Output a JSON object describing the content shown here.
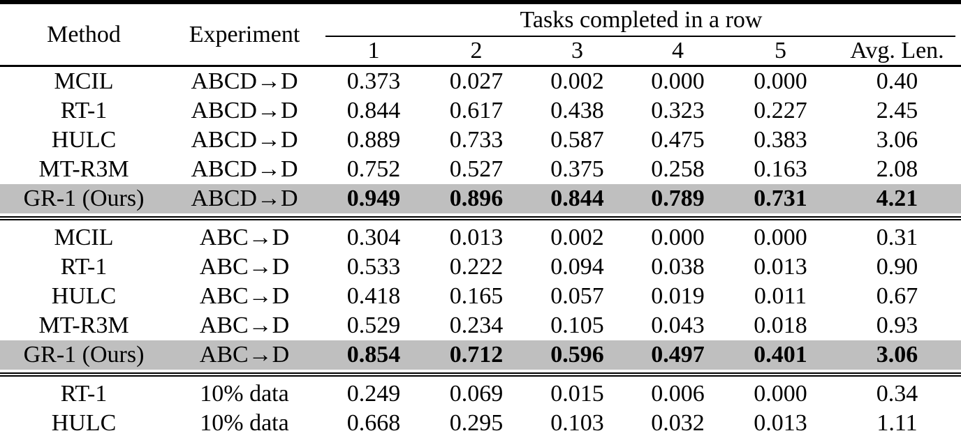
{
  "table": {
    "header": {
      "method_label": "Method",
      "experiment_label": "Experiment",
      "span_label": "Tasks completed in a row",
      "task_columns": [
        "1",
        "2",
        "3",
        "4",
        "5"
      ],
      "avg_label": "Avg. Len."
    },
    "colors": {
      "highlight_row": "#bfbfbf",
      "rule": "#000000",
      "text": "#000000",
      "background": "#ffffff"
    },
    "groups": [
      {
        "rows": [
          {
            "method": "MCIL",
            "experiment": "ABCD→D",
            "values": [
              "0.373",
              "0.027",
              "0.002",
              "0.000",
              "0.000"
            ],
            "avg": "0.40",
            "highlight": false
          },
          {
            "method": "RT-1",
            "experiment": "ABCD→D",
            "values": [
              "0.844",
              "0.617",
              "0.438",
              "0.323",
              "0.227"
            ],
            "avg": "2.45",
            "highlight": false
          },
          {
            "method": "HULC",
            "experiment": "ABCD→D",
            "values": [
              "0.889",
              "0.733",
              "0.587",
              "0.475",
              "0.383"
            ],
            "avg": "3.06",
            "highlight": false
          },
          {
            "method": "MT-R3M",
            "experiment": "ABCD→D",
            "values": [
              "0.752",
              "0.527",
              "0.375",
              "0.258",
              "0.163"
            ],
            "avg": "2.08",
            "highlight": false
          },
          {
            "method": "GR-1 (Ours)",
            "experiment": "ABCD→D",
            "values": [
              "0.949",
              "0.896",
              "0.844",
              "0.789",
              "0.731"
            ],
            "avg": "4.21",
            "highlight": true
          }
        ]
      },
      {
        "rows": [
          {
            "method": "MCIL",
            "experiment": "ABC→D",
            "values": [
              "0.304",
              "0.013",
              "0.002",
              "0.000",
              "0.000"
            ],
            "avg": "0.31",
            "highlight": false
          },
          {
            "method": "RT-1",
            "experiment": "ABC→D",
            "values": [
              "0.533",
              "0.222",
              "0.094",
              "0.038",
              "0.013"
            ],
            "avg": "0.90",
            "highlight": false
          },
          {
            "method": "HULC",
            "experiment": "ABC→D",
            "values": [
              "0.418",
              "0.165",
              "0.057",
              "0.019",
              "0.011"
            ],
            "avg": "0.67",
            "highlight": false
          },
          {
            "method": "MT-R3M",
            "experiment": "ABC→D",
            "values": [
              "0.529",
              "0.234",
              "0.105",
              "0.043",
              "0.018"
            ],
            "avg": "0.93",
            "highlight": false
          },
          {
            "method": "GR-1 (Ours)",
            "experiment": "ABC→D",
            "values": [
              "0.854",
              "0.712",
              "0.596",
              "0.497",
              "0.401"
            ],
            "avg": "3.06",
            "highlight": true
          }
        ]
      },
      {
        "rows": [
          {
            "method": "RT-1",
            "experiment": "10% data",
            "values": [
              "0.249",
              "0.069",
              "0.015",
              "0.006",
              "0.000"
            ],
            "avg": "0.34",
            "highlight": false
          },
          {
            "method": "HULC",
            "experiment": "10% data",
            "values": [
              "0.668",
              "0.295",
              "0.103",
              "0.032",
              "0.013"
            ],
            "avg": "1.11",
            "highlight": false
          }
        ]
      }
    ]
  }
}
